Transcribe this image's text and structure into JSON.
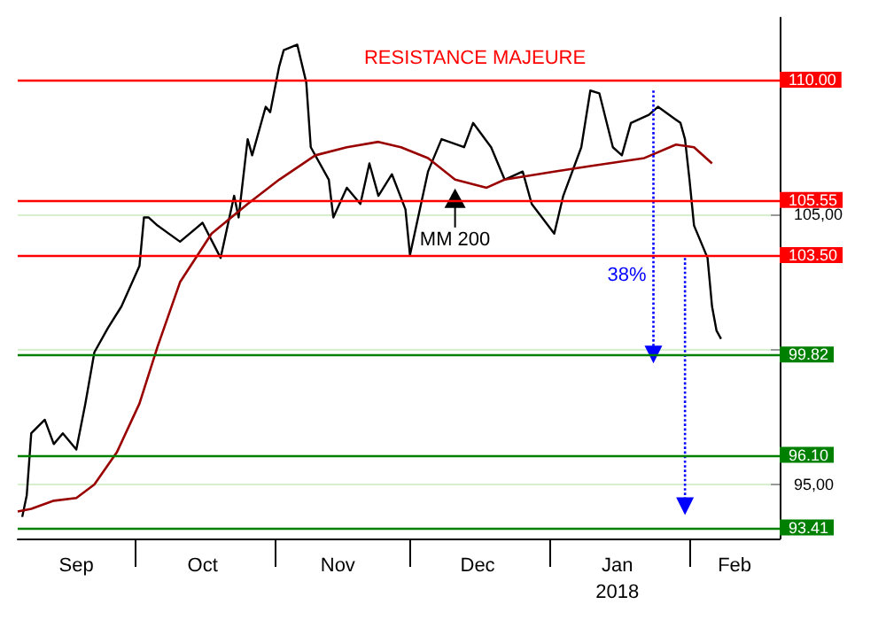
{
  "chart_data": {
    "type": "line",
    "xlim": [
      "2017-09-05",
      "2018-02-21"
    ],
    "ylim": [
      93,
      112.3
    ],
    "xticks": [
      {
        "value": "2017-10-01",
        "label": null
      },
      {
        "value": "2017-11-01",
        "label": null
      },
      {
        "value": "2017-12-01",
        "label": null
      },
      {
        "value": "2018-01-01",
        "label": null
      },
      {
        "value": "2018-02-01",
        "label": null
      },
      {
        "value": "2017-09-18",
        "label": "Sep"
      },
      {
        "value": "2017-10-16",
        "label": "Oct"
      },
      {
        "value": "2017-11-15",
        "label": "Nov"
      },
      {
        "value": "2017-12-16",
        "label": "Dec"
      },
      {
        "value": "2018-01-16",
        "label": "Jan\n2018"
      },
      {
        "value": "2018-02-11",
        "label": "Feb"
      }
    ],
    "yticks": [
      {
        "value": 95,
        "label": "95,00"
      },
      {
        "value": 100,
        "label": null
      },
      {
        "value": 105,
        "label": "105,00"
      },
      {
        "value": 110,
        "label": null
      }
    ],
    "grid": "y",
    "series": [
      {
        "color": "#000000",
        "x": [
          "2017-09-06",
          "2017-09-07",
          "2017-09-08",
          "2017-09-11",
          "2017-09-13",
          "2017-09-15",
          "2017-09-18",
          "2017-09-20",
          "2017-09-22",
          "2017-09-25",
          "2017-09-28",
          "2017-10-02",
          "2017-10-03",
          "2017-10-04",
          "2017-10-06",
          "2017-10-11",
          "2017-10-16",
          "2017-10-20",
          "2017-10-23",
          "2017-10-24",
          "2017-10-26",
          "2017-10-27",
          "2017-10-30",
          "2017-10-31",
          "2017-11-02",
          "2017-11-03",
          "2017-11-06",
          "2017-11-08",
          "2017-11-09",
          "2017-11-13",
          "2017-11-14",
          "2017-11-17",
          "2017-11-20",
          "2017-11-22",
          "2017-11-24",
          "2017-11-27",
          "2017-11-30",
          "2017-12-01",
          "2017-12-05",
          "2017-12-08",
          "2017-12-13",
          "2017-12-15",
          "2017-12-19",
          "2017-12-22",
          "2017-12-26",
          "2017-12-28",
          "2018-01-02",
          "2018-01-04",
          "2018-01-08",
          "2018-01-10",
          "2018-01-12",
          "2018-01-15",
          "2018-01-17",
          "2018-01-19",
          "2018-01-23",
          "2018-01-25",
          "2018-01-30",
          "2018-01-31",
          "2018-02-01",
          "2018-02-02",
          "2018-02-05",
          "2018-02-06",
          "2018-02-07",
          "2018-02-08"
        ],
        "values": [
          93.8,
          94.6,
          96.9,
          97.4,
          96.5,
          96.9,
          96.3,
          98.0,
          99.9,
          100.8,
          101.6,
          103.1,
          104.9,
          104.9,
          104.6,
          104.0,
          104.7,
          103.4,
          105.7,
          104.9,
          107.8,
          107.2,
          109.0,
          108.8,
          110.5,
          111.1,
          111.3,
          109.9,
          107.5,
          106.3,
          104.9,
          106.0,
          105.4,
          106.9,
          105.7,
          106.5,
          105.2,
          103.5,
          106.6,
          107.8,
          107.5,
          108.4,
          107.5,
          106.3,
          106.6,
          105.4,
          104.3,
          105.7,
          107.5,
          109.6,
          109.5,
          107.5,
          107.2,
          108.4,
          108.7,
          109.0,
          108.4,
          107.8,
          106.3,
          104.6,
          103.4,
          101.6,
          100.7,
          100.4
        ]
      },
      {
        "color": "#990000",
        "x": [
          "2017-09-05",
          "2017-09-08",
          "2017-09-13",
          "2017-09-18",
          "2017-09-22",
          "2017-09-27",
          "2017-10-02",
          "2017-10-06",
          "2017-10-11",
          "2017-10-18",
          "2017-10-26",
          "2017-11-02",
          "2017-11-10",
          "2017-11-17",
          "2017-11-24",
          "2017-11-29",
          "2017-12-05",
          "2017-12-11",
          "2017-12-18",
          "2017-12-22",
          "2018-01-02",
          "2018-01-10",
          "2018-01-22",
          "2018-01-29",
          "2018-02-02",
          "2018-02-06"
        ],
        "values": [
          94.0,
          94.1,
          94.4,
          94.5,
          95.0,
          96.2,
          98.0,
          100.1,
          102.5,
          104.3,
          105.4,
          106.3,
          107.2,
          107.5,
          107.7,
          107.5,
          107.1,
          106.3,
          106.0,
          106.3,
          106.6,
          106.8,
          107.1,
          107.6,
          107.5,
          106.9
        ]
      },
      {
        "color": "#0000ff",
        "line_style": "dotted",
        "marker": "triangle",
        "x": [
          "2018-01-24",
          "2018-01-24"
        ],
        "values": [
          109.6,
          99.82
        ]
      },
      {
        "color": "#0000ff",
        "line_style": "dotted",
        "marker": "triangle",
        "x": [
          "2018-01-31",
          "2018-01-31"
        ],
        "values": [
          103.4,
          94.2
        ]
      }
    ],
    "ref_lines": [
      {
        "axis": "y",
        "value": 110,
        "label": "110.00",
        "color": "#ff0000"
      },
      {
        "axis": "y",
        "value": 105.55,
        "label": "105.55",
        "color": "#ff0000"
      },
      {
        "axis": "y",
        "value": 103.5,
        "label": "103.50",
        "color": "#ff0000"
      },
      {
        "axis": "y",
        "value": 99.82,
        "label": "99.82",
        "color": "#008000"
      },
      {
        "axis": "y",
        "value": 96.1,
        "label": "96.10",
        "color": "#008000"
      },
      {
        "axis": "y",
        "value": 93.41,
        "label": "93.41",
        "color": "#008000"
      }
    ],
    "annotations": [
      "38%",
      "MM 200",
      "RESISTANCE MAJEURE"
    ]
  }
}
